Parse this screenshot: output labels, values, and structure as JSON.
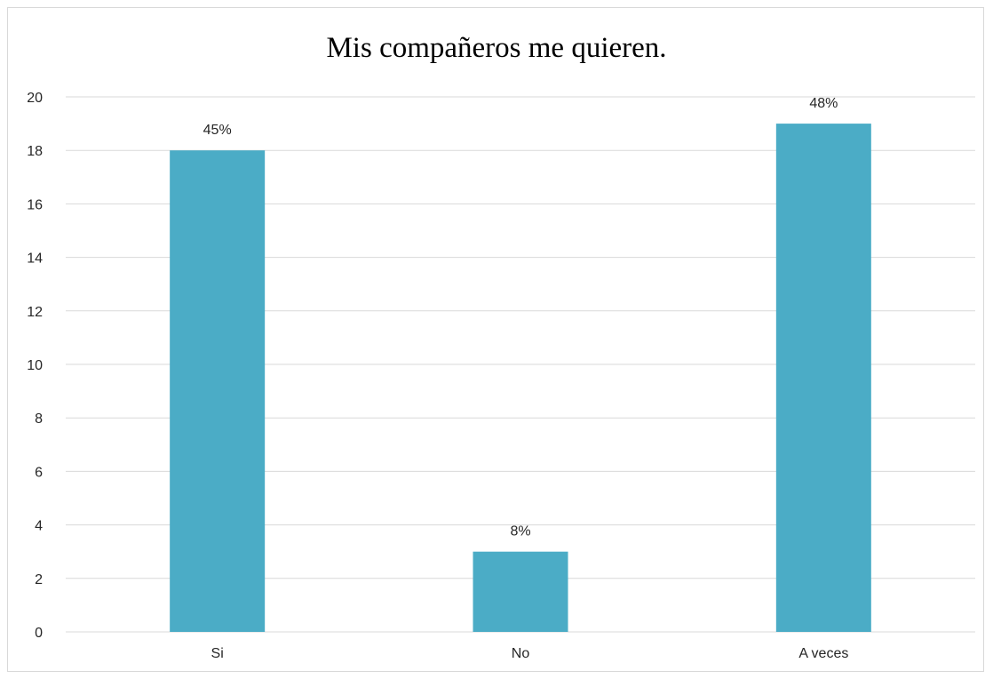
{
  "chart_data": {
    "type": "bar",
    "title": "Mis compañeros me quieren.",
    "xlabel": "",
    "ylabel": "",
    "categories": [
      "Si",
      "No",
      "A veces"
    ],
    "values": [
      18,
      3,
      19
    ],
    "data_labels": [
      "45%",
      "8%",
      "48%"
    ],
    "ylim": [
      0,
      20
    ],
    "yticks": [
      0,
      2,
      4,
      6,
      8,
      10,
      12,
      14,
      16,
      18,
      20
    ],
    "grid": true,
    "legend": "none",
    "bar_color": "#4bacc6",
    "grid_color": "#d9d9d9"
  }
}
